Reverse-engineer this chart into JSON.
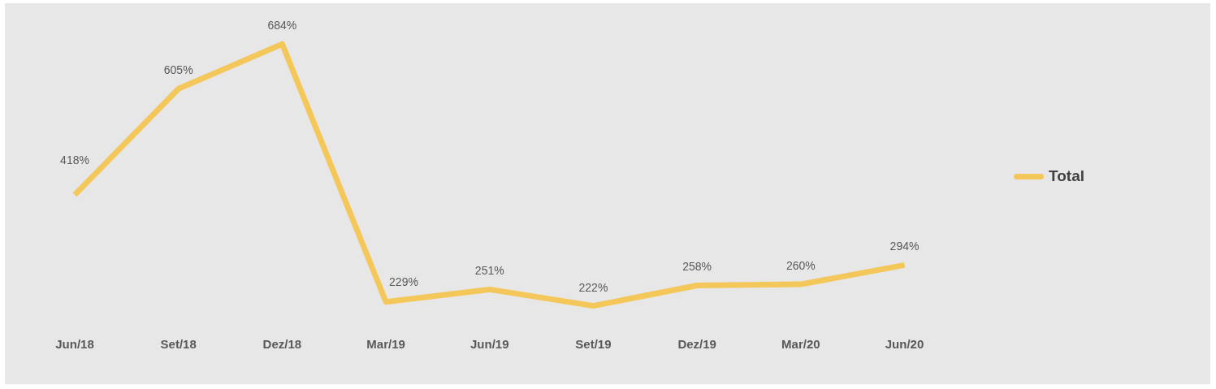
{
  "chart_data": {
    "type": "line",
    "categories": [
      "Jun/18",
      "Set/18",
      "Dez/18",
      "Mar/19",
      "Jun/19",
      "Set/19",
      "Dez/19",
      "Mar/20",
      "Jun/20"
    ],
    "series": [
      {
        "name": "Total",
        "color": "#f4c75a",
        "values": [
          418,
          605,
          684,
          229,
          251,
          222,
          258,
          260,
          294
        ],
        "value_labels": [
          "418%",
          "605%",
          "684%",
          "229%",
          "251%",
          "222%",
          "258%",
          "260%",
          "294%"
        ]
      }
    ],
    "legend": "right",
    "marker": "none",
    "line_style": "solid",
    "grid": false,
    "tick_labels": "x"
  }
}
